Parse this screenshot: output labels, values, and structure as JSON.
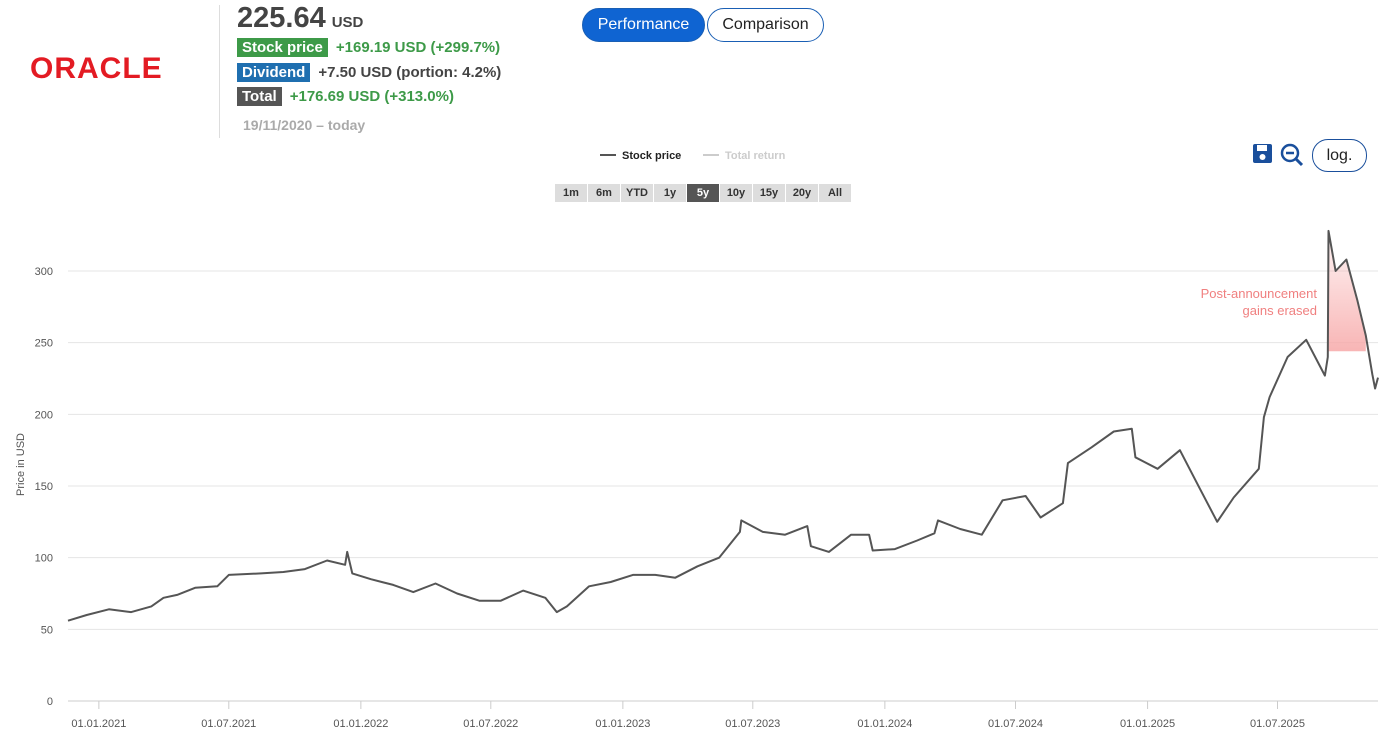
{
  "header": {
    "logo": "ORACLE",
    "price": "225.64",
    "currency": "USD",
    "rows": [
      {
        "label": "Stock price",
        "value": "+169.19 USD (+299.7%)",
        "color": "#3d9a48",
        "value_color": "#3d9a48"
      },
      {
        "label": "Dividend",
        "value": "+7.50 USD (portion: 4.2%)",
        "color": "#1f6fb0",
        "value_color": "#444"
      },
      {
        "label": "Total",
        "value": "+176.69 USD (+313.0%)",
        "color": "#555",
        "value_color": "#3d9a48"
      }
    ],
    "period": "19/11/2020 – today"
  },
  "tabs": [
    "Performance",
    "Comparison"
  ],
  "active_tab": 0,
  "log_button": "log.",
  "ranges": [
    "1m",
    "6m",
    "YTD",
    "1y",
    "5y",
    "10y",
    "15y",
    "20y",
    "All"
  ],
  "active_range": 4,
  "chart_data": {
    "type": "line",
    "ylabel": "Price in USD",
    "x": [
      "2020-11-19",
      "2020-12-15",
      "2021-01-15",
      "2021-02-15",
      "2021-03-15",
      "2021-04-01",
      "2021-04-20",
      "2021-05-15",
      "2021-06-15",
      "2021-07-01",
      "2021-08-15",
      "2021-09-15",
      "2021-10-15",
      "2021-11-15",
      "2021-12-10",
      "2021-12-13",
      "2021-12-20",
      "2022-01-15",
      "2022-02-15",
      "2022-03-15",
      "2022-04-15",
      "2022-05-15",
      "2022-06-15",
      "2022-07-15",
      "2022-08-15",
      "2022-09-15",
      "2022-10-01",
      "2022-10-15",
      "2022-11-15",
      "2022-12-15",
      "2023-01-15",
      "2023-02-15",
      "2023-03-15",
      "2023-04-15",
      "2023-05-15",
      "2023-06-13",
      "2023-06-15",
      "2023-07-15",
      "2023-08-15",
      "2023-09-15",
      "2023-09-20",
      "2023-10-15",
      "2023-11-15",
      "2023-12-10",
      "2023-12-15",
      "2024-01-15",
      "2024-02-15",
      "2024-03-10",
      "2024-03-15",
      "2024-04-15",
      "2024-05-15",
      "2024-06-13",
      "2024-07-15",
      "2024-08-05",
      "2024-09-05",
      "2024-09-12",
      "2024-10-15",
      "2024-11-15",
      "2024-12-10",
      "2024-12-15",
      "2025-01-15",
      "2025-02-15",
      "2025-03-15",
      "2025-04-08",
      "2025-05-01",
      "2025-06-05",
      "2025-06-12",
      "2025-06-20",
      "2025-07-15",
      "2025-08-10",
      "2025-09-05",
      "2025-09-09",
      "2025-09-10",
      "2025-09-20",
      "2025-10-05",
      "2025-10-20",
      "2025-11-01",
      "2025-11-10",
      "2025-11-14",
      "2025-11-18"
    ],
    "series": [
      {
        "name": "Stock price",
        "color": "#555555",
        "values": [
          56,
          60,
          64,
          62,
          66,
          72,
          74,
          79,
          80,
          88,
          89,
          90,
          92,
          98,
          95,
          104,
          89,
          85,
          81,
          76,
          82,
          75,
          70,
          70,
          77,
          72,
          62,
          66,
          80,
          83,
          88,
          88,
          86,
          94,
          100,
          118,
          126,
          118,
          116,
          122,
          108,
          104,
          116,
          116,
          105,
          106,
          112,
          117,
          126,
          120,
          116,
          140,
          143,
          128,
          138,
          166,
          177,
          188,
          190,
          170,
          162,
          175,
          148,
          125,
          142,
          162,
          198,
          212,
          240,
          252,
          227,
          240,
          328,
          300,
          308,
          280,
          255,
          228,
          218,
          225.64
        ]
      }
    ],
    "hidden_series": [
      {
        "name": "Total return",
        "color": "#cccccc"
      }
    ],
    "xlim": [
      "2020-11-19",
      "2025-11-18"
    ],
    "xticks": [
      {
        "value": "2021-01-01",
        "label": "01.01.2021"
      },
      {
        "value": "2021-07-01",
        "label": "01.07.2021"
      },
      {
        "value": "2022-01-01",
        "label": "01.01.2022"
      },
      {
        "value": "2022-07-01",
        "label": "01.07.2022"
      },
      {
        "value": "2023-01-01",
        "label": "01.01.2023"
      },
      {
        "value": "2023-07-01",
        "label": "01.07.2023"
      },
      {
        "value": "2024-01-01",
        "label": "01.01.2024"
      },
      {
        "value": "2024-07-01",
        "label": "01.07.2024"
      },
      {
        "value": "2025-01-01",
        "label": "01.01.2025"
      },
      {
        "value": "2025-07-01",
        "label": "01.07.2025"
      }
    ],
    "ylim": [
      0,
      330
    ],
    "yticks": [
      0,
      50,
      100,
      150,
      200,
      250,
      300
    ],
    "grid": true,
    "annotation": {
      "lines": [
        "Post-announcement",
        "gains erased"
      ],
      "color": "#f08080",
      "xlim": [
        "2025-09-10",
        "2025-11-05"
      ],
      "level": 244,
      "fill": "#f7a8a8"
    }
  }
}
